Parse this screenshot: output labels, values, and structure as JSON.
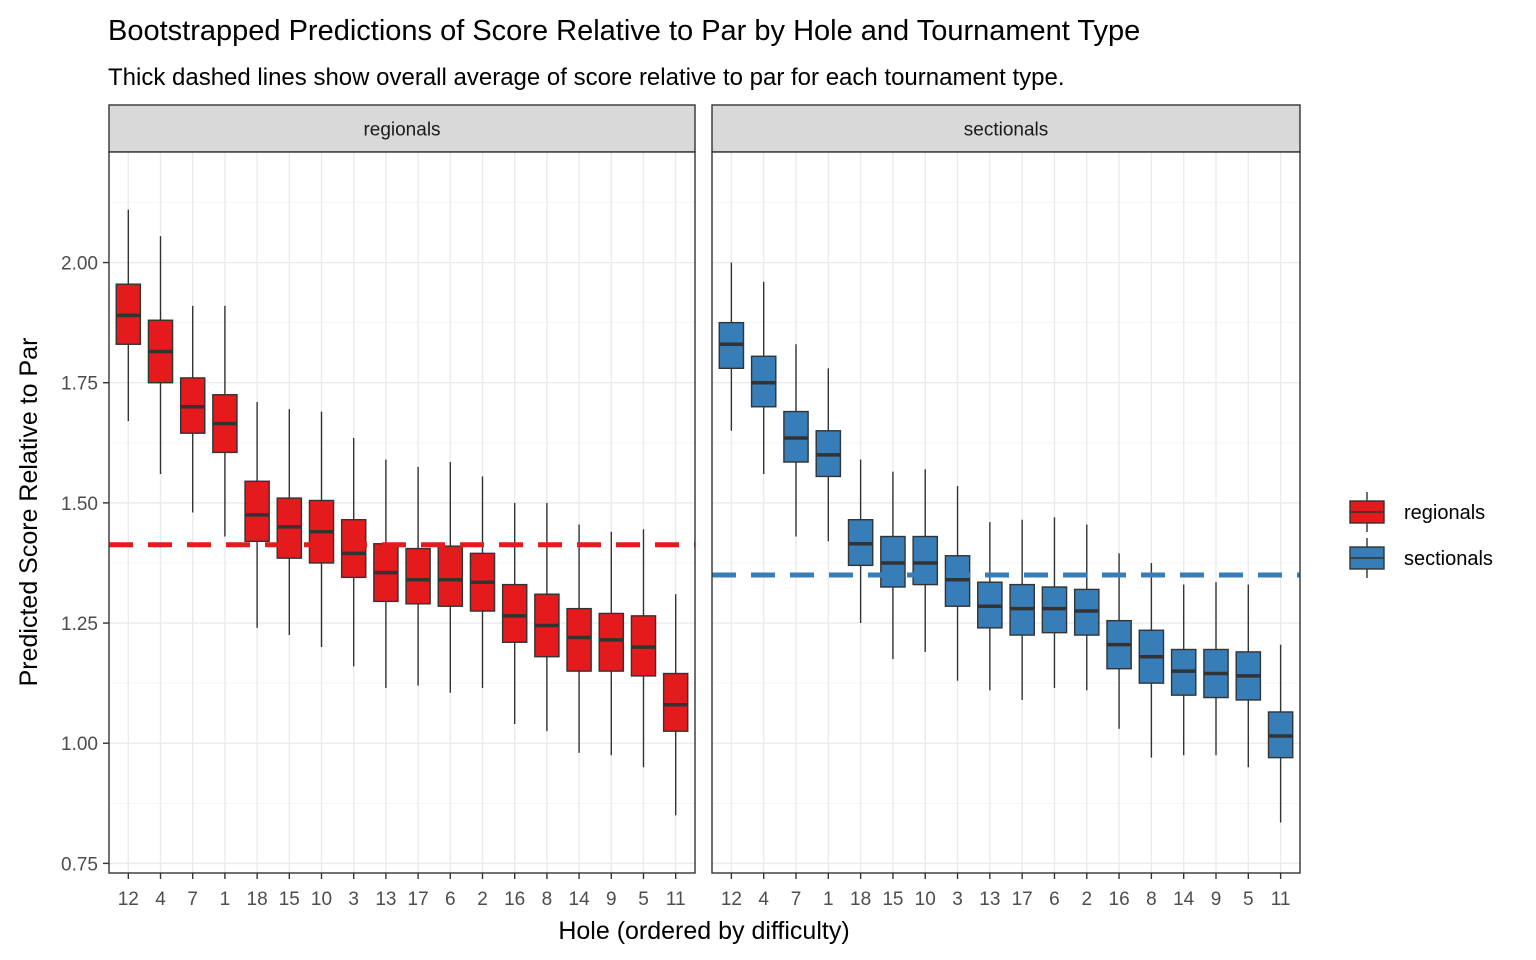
{
  "chart_data": {
    "type": "boxplot",
    "title": "Bootstrapped Predictions of Score Relative to Par by Hole and Tournament Type",
    "subtitle": "Thick dashed lines show overall average of score relative to par for each tournament type.",
    "xlabel": "Hole (ordered by difficulty)",
    "ylabel": "Predicted Score Relative to Par",
    "ylim": [
      0.73,
      2.23
    ],
    "yticks": [
      0.75,
      1.0,
      1.25,
      1.5,
      1.75,
      2.0
    ],
    "ytick_labels": [
      "0.75",
      "1.00",
      "1.25",
      "1.50",
      "1.75",
      "2.00"
    ],
    "grid": true,
    "legend_position": "right",
    "categories": [
      "12",
      "4",
      "7",
      "1",
      "18",
      "15",
      "10",
      "3",
      "13",
      "17",
      "6",
      "2",
      "16",
      "8",
      "14",
      "9",
      "5",
      "11"
    ],
    "facets": [
      {
        "name": "regionals",
        "color": "#e41a1c",
        "overall_average": 1.413,
        "boxes": [
          {
            "hole": "12",
            "lower_whisker": 1.67,
            "q1": 1.83,
            "median": 1.89,
            "q3": 1.955,
            "upper_whisker": 2.11
          },
          {
            "hole": "4",
            "lower_whisker": 1.56,
            "q1": 1.75,
            "median": 1.815,
            "q3": 1.88,
            "upper_whisker": 2.055
          },
          {
            "hole": "7",
            "lower_whisker": 1.48,
            "q1": 1.645,
            "median": 1.7,
            "q3": 1.76,
            "upper_whisker": 1.91
          },
          {
            "hole": "1",
            "lower_whisker": 1.43,
            "q1": 1.605,
            "median": 1.665,
            "q3": 1.725,
            "upper_whisker": 1.91
          },
          {
            "hole": "18",
            "lower_whisker": 1.24,
            "q1": 1.42,
            "median": 1.475,
            "q3": 1.545,
            "upper_whisker": 1.71
          },
          {
            "hole": "15",
            "lower_whisker": 1.225,
            "q1": 1.385,
            "median": 1.45,
            "q3": 1.51,
            "upper_whisker": 1.695
          },
          {
            "hole": "10",
            "lower_whisker": 1.2,
            "q1": 1.375,
            "median": 1.44,
            "q3": 1.505,
            "upper_whisker": 1.69
          },
          {
            "hole": "3",
            "lower_whisker": 1.16,
            "q1": 1.345,
            "median": 1.395,
            "q3": 1.465,
            "upper_whisker": 1.635
          },
          {
            "hole": "13",
            "lower_whisker": 1.115,
            "q1": 1.295,
            "median": 1.355,
            "q3": 1.415,
            "upper_whisker": 1.59
          },
          {
            "hole": "17",
            "lower_whisker": 1.12,
            "q1": 1.29,
            "median": 1.34,
            "q3": 1.405,
            "upper_whisker": 1.575
          },
          {
            "hole": "6",
            "lower_whisker": 1.105,
            "q1": 1.285,
            "median": 1.34,
            "q3": 1.41,
            "upper_whisker": 1.585
          },
          {
            "hole": "2",
            "lower_whisker": 1.115,
            "q1": 1.275,
            "median": 1.335,
            "q3": 1.395,
            "upper_whisker": 1.555
          },
          {
            "hole": "16",
            "lower_whisker": 1.04,
            "q1": 1.21,
            "median": 1.265,
            "q3": 1.33,
            "upper_whisker": 1.5
          },
          {
            "hole": "8",
            "lower_whisker": 1.025,
            "q1": 1.18,
            "median": 1.245,
            "q3": 1.31,
            "upper_whisker": 1.5
          },
          {
            "hole": "14",
            "lower_whisker": 0.98,
            "q1": 1.15,
            "median": 1.22,
            "q3": 1.28,
            "upper_whisker": 1.455
          },
          {
            "hole": "9",
            "lower_whisker": 0.975,
            "q1": 1.15,
            "median": 1.215,
            "q3": 1.27,
            "upper_whisker": 1.44
          },
          {
            "hole": "5",
            "lower_whisker": 0.95,
            "q1": 1.14,
            "median": 1.2,
            "q3": 1.265,
            "upper_whisker": 1.445
          },
          {
            "hole": "11",
            "lower_whisker": 0.85,
            "q1": 1.025,
            "median": 1.08,
            "q3": 1.145,
            "upper_whisker": 1.31
          }
        ]
      },
      {
        "name": "sectionals",
        "color": "#377eb8",
        "overall_average": 1.35,
        "boxes": [
          {
            "hole": "12",
            "lower_whisker": 1.65,
            "q1": 1.78,
            "median": 1.83,
            "q3": 1.875,
            "upper_whisker": 2.0
          },
          {
            "hole": "4",
            "lower_whisker": 1.56,
            "q1": 1.7,
            "median": 1.75,
            "q3": 1.805,
            "upper_whisker": 1.96
          },
          {
            "hole": "7",
            "lower_whisker": 1.43,
            "q1": 1.585,
            "median": 1.635,
            "q3": 1.69,
            "upper_whisker": 1.83
          },
          {
            "hole": "1",
            "lower_whisker": 1.42,
            "q1": 1.555,
            "median": 1.6,
            "q3": 1.65,
            "upper_whisker": 1.78
          },
          {
            "hole": "18",
            "lower_whisker": 1.25,
            "q1": 1.37,
            "median": 1.415,
            "q3": 1.465,
            "upper_whisker": 1.59
          },
          {
            "hole": "15",
            "lower_whisker": 1.175,
            "q1": 1.325,
            "median": 1.375,
            "q3": 1.43,
            "upper_whisker": 1.565
          },
          {
            "hole": "10",
            "lower_whisker": 1.19,
            "q1": 1.33,
            "median": 1.375,
            "q3": 1.43,
            "upper_whisker": 1.57
          },
          {
            "hole": "3",
            "lower_whisker": 1.13,
            "q1": 1.285,
            "median": 1.34,
            "q3": 1.39,
            "upper_whisker": 1.535
          },
          {
            "hole": "13",
            "lower_whisker": 1.11,
            "q1": 1.24,
            "median": 1.285,
            "q3": 1.335,
            "upper_whisker": 1.46
          },
          {
            "hole": "17",
            "lower_whisker": 1.09,
            "q1": 1.225,
            "median": 1.28,
            "q3": 1.33,
            "upper_whisker": 1.465
          },
          {
            "hole": "6",
            "lower_whisker": 1.115,
            "q1": 1.23,
            "median": 1.28,
            "q3": 1.325,
            "upper_whisker": 1.47
          },
          {
            "hole": "2",
            "lower_whisker": 1.11,
            "q1": 1.225,
            "median": 1.275,
            "q3": 1.32,
            "upper_whisker": 1.455
          },
          {
            "hole": "16",
            "lower_whisker": 1.03,
            "q1": 1.155,
            "median": 1.205,
            "q3": 1.255,
            "upper_whisker": 1.395
          },
          {
            "hole": "8",
            "lower_whisker": 0.97,
            "q1": 1.125,
            "median": 1.18,
            "q3": 1.235,
            "upper_whisker": 1.375
          },
          {
            "hole": "14",
            "lower_whisker": 0.975,
            "q1": 1.1,
            "median": 1.15,
            "q3": 1.195,
            "upper_whisker": 1.33
          },
          {
            "hole": "9",
            "lower_whisker": 0.975,
            "q1": 1.095,
            "median": 1.145,
            "q3": 1.195,
            "upper_whisker": 1.335
          },
          {
            "hole": "5",
            "lower_whisker": 0.95,
            "q1": 1.09,
            "median": 1.14,
            "q3": 1.19,
            "upper_whisker": 1.33
          },
          {
            "hole": "11",
            "lower_whisker": 0.835,
            "q1": 0.97,
            "median": 1.015,
            "q3": 1.065,
            "upper_whisker": 1.205
          }
        ]
      }
    ],
    "legend": [
      {
        "label": "regionals",
        "color": "#e41a1c"
      },
      {
        "label": "sectionals",
        "color": "#377eb8"
      }
    ]
  }
}
